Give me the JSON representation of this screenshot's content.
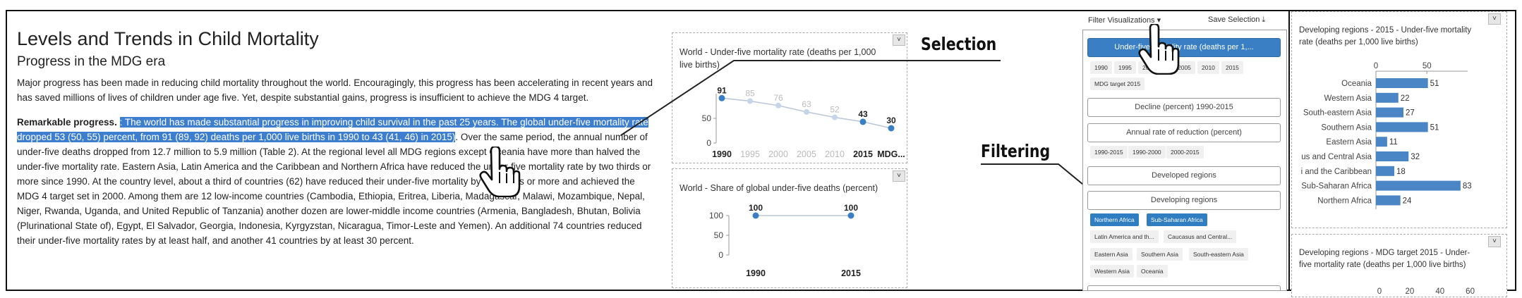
{
  "article": {
    "title": "Levels and Trends in Child Mortality",
    "subtitle": "Progress in the MDG era",
    "para1": "Major progress has been made in reducing child mortality throughout the world. Encouragingly, this progress has been accelerating in recent years and has saved millions of lives of children under age five. Yet, despite substantial gains, progress is insufficient to achieve the MDG 4 target.",
    "para2_bold": "Remarkable progress.",
    "para2_highlight": ": The world has made substantial progress in improving child survival in the past 25 years. The global under-five mortality rate dropped 53 (50, 55) percent, from 91 (89, 92) deaths per 1,000 live births in 1990 to 43 (41, 46) in 2015)",
    "para2_rest": ". Over the same period, the annual number of under-five deaths dropped from 12.7 million to 5.9 million (Table 2). At the regional level all MDG regions except Oceania have more than halved the under-five mortality rate. Eastern Asia, Latin America and the Caribbean and Northern Africa have reduced the under-five mortality rate by two thirds or more since 1990. At the country level, about a third of countries (62) have reduced their under-five mortality by two thirds or more and achieved the MDG 4 target set in 2000. Among them are 12 low-income countries (Cambodia, Ethiopia, Eritrea, Liberia, Madagascar, Malawi, Mozambique, Nepal, Niger, Rwanda, Uganda, and United Republic of Tanzania) another dozen are lower-middle income countries (Armenia, Bangladesh, Bhutan, Bolivia (Plurinational State of), Egypt, El Salvador, Georgia, Indonesia, Kyrgyzstan, Nicaragua, Timor-Leste and Yemen). An additional 74 countries reduced their under-five mortality rates by at least half, and another 41 countries by at least 30 percent."
  },
  "callouts": {
    "selection": "Selection",
    "filtering": "Filtering"
  },
  "collapse_glyph": "˅",
  "filter_panel": {
    "filter_button": "Filter Visualizations ▾",
    "save_button": "Save Selection ⤓",
    "active_button": "Under-five mortality rate (deaths per 1,...",
    "years_row1": [
      "1990",
      "1995",
      "2000",
      "2005",
      "2010",
      "2015"
    ],
    "mdg_target": "MDG target 2015",
    "decline_button": "Decline (percent) 1990-2015",
    "annual_button": "Annual rate of reduction (percent)",
    "annual_periods": [
      "1990-2015",
      "1990-2000",
      "2000-2015"
    ],
    "developed_button": "Developed regions",
    "developing_button": "Developing regions",
    "regions_selected": [
      "Northern Africa",
      "Sub-Saharan Africa"
    ],
    "regions_row2": [
      "Latin America and th...",
      "Caucasus and Central..."
    ],
    "regions_row3": [
      "Eastern Asia",
      "Southern Asia",
      "South-eastern Asia"
    ],
    "regions_row4": [
      "Western Asia",
      "Oceania"
    ]
  },
  "chart_data": [
    {
      "type": "line",
      "title": "World - Under-five mortality rate (deaths per 1,000 live births)",
      "categories": [
        "1990",
        "1995",
        "2000",
        "2005",
        "2010",
        "2015",
        "MDG..."
      ],
      "values": [
        91,
        85,
        76,
        63,
        52,
        43,
        30
      ],
      "highlighted": [
        true,
        false,
        false,
        false,
        false,
        true,
        true
      ],
      "y_ticks": [
        0,
        50
      ],
      "ylim": [
        0,
        100
      ],
      "ylabel": "",
      "xlabel": ""
    },
    {
      "type": "line",
      "title": "World - Share of global under-five deaths (percent)",
      "categories": [
        "1990",
        "2015"
      ],
      "values": [
        100,
        100
      ],
      "y_ticks": [
        0,
        50,
        100
      ],
      "ylim": [
        0,
        100
      ],
      "ylabel": "",
      "xlabel": ""
    },
    {
      "type": "bar",
      "orientation": "horizontal",
      "title": "Developing regions - 2015 - Under-five mortality rate (deaths per 1,000 live births)",
      "categories": [
        "Oceania",
        "Western Asia",
        "South-eastern Asia",
        "Southern Asia",
        "Eastern Asia",
        "us and Central Asia",
        "i and the Caribbean",
        "Sub-Saharan Africa",
        "Northern Africa"
      ],
      "values": [
        51,
        22,
        27,
        51,
        11,
        32,
        18,
        83,
        24
      ],
      "x_ticks": [
        0,
        50
      ],
      "xlim": [
        0,
        90
      ],
      "color": "#4a86c5"
    },
    {
      "type": "bar",
      "orientation": "horizontal",
      "title": "Developing regions - MDG target 2015 - Under-five mortality rate (deaths per 1,000 live births)",
      "categories": [],
      "values": [],
      "x_ticks": [
        0,
        20,
        40,
        60
      ],
      "xlim": [
        0,
        70
      ]
    }
  ]
}
